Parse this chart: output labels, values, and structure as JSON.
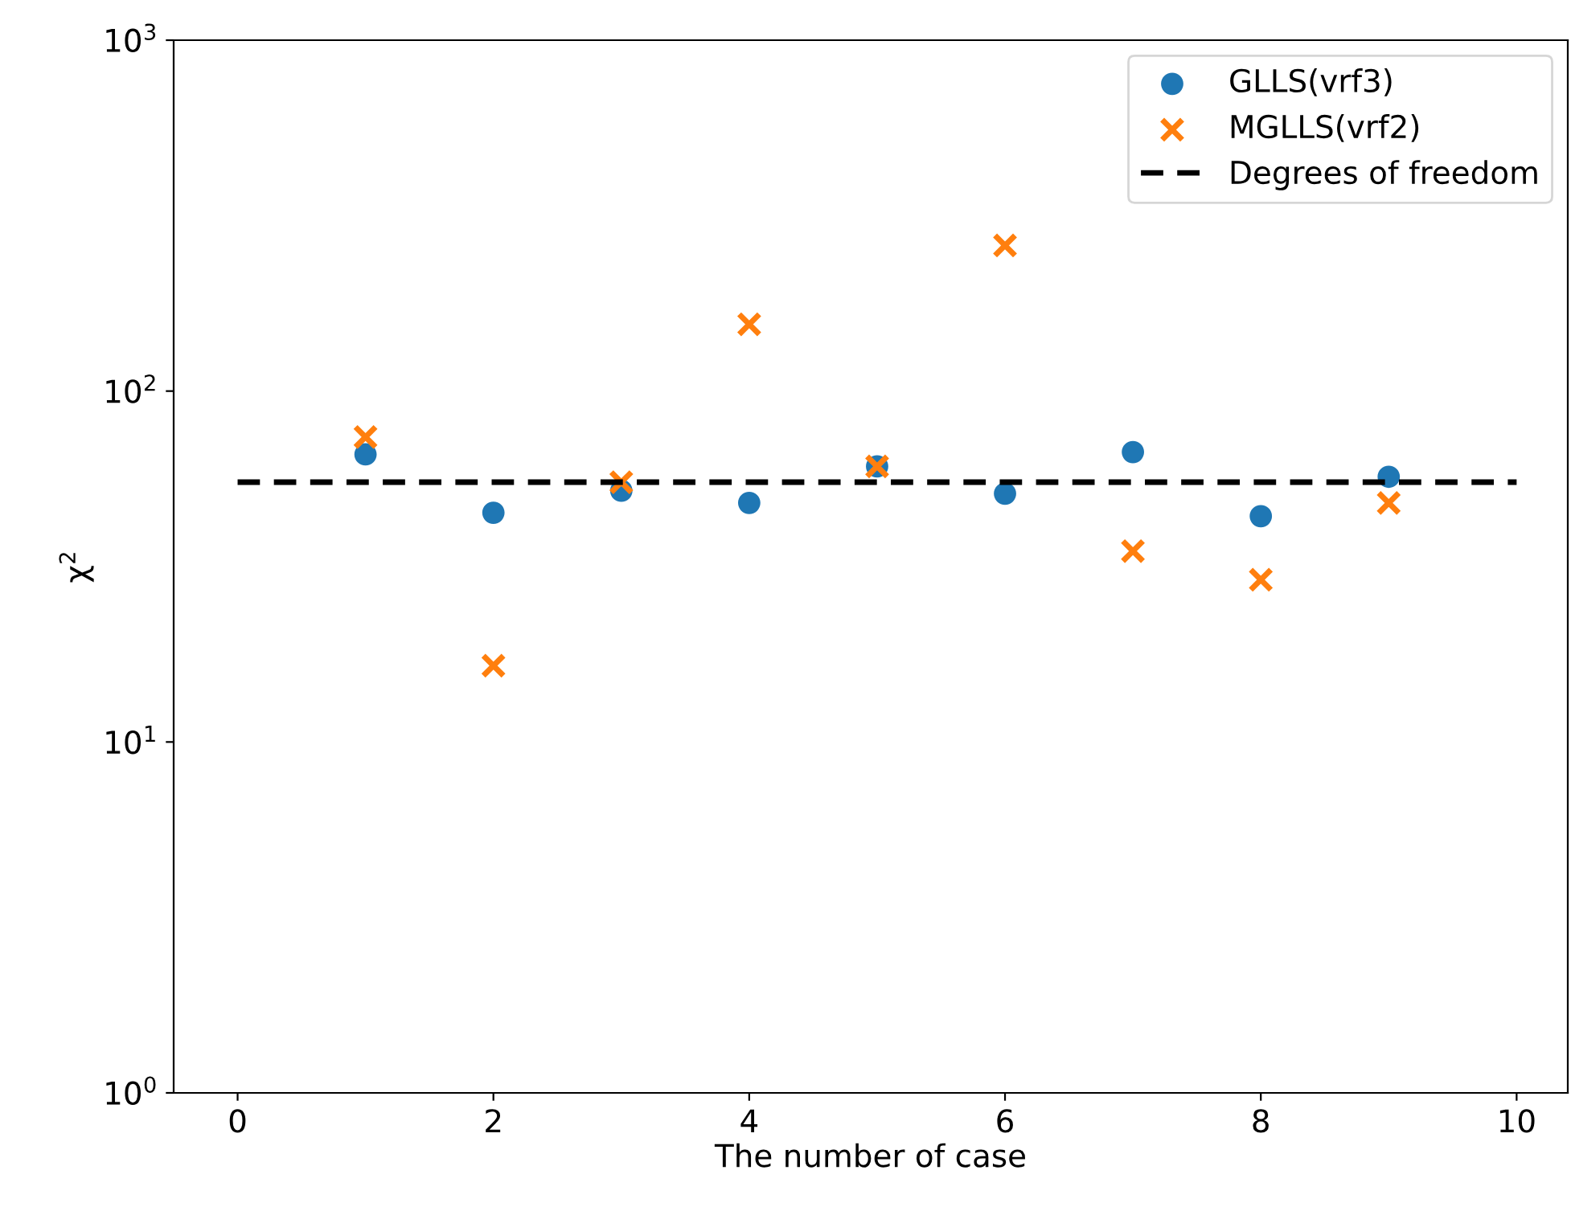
{
  "chart_data": {
    "type": "scatter",
    "xlabel": "The number of case",
    "ylabel": "χ$^{2}$",
    "log": "y",
    "xlim": [
      -0.5,
      10.4
    ],
    "xticks": [
      0,
      2,
      4,
      6,
      8,
      10
    ],
    "ylim": [
      1,
      1000
    ],
    "yticks": [
      {
        "value": 1,
        "label": "10$^{0}$"
      },
      {
        "value": 10,
        "label": "10$^{1}$"
      },
      {
        "value": 100,
        "label": "10$^{2}$"
      },
      {
        "value": 1000,
        "label": "10$^{3}$"
      }
    ],
    "x": [
      1,
      2,
      3,
      4,
      5,
      6,
      7,
      8,
      9
    ],
    "legend": "top right",
    "grid": false,
    "series": [
      {
        "name": "GLLS(vrf3)",
        "color": "#1f77b4",
        "marker": "circle",
        "values": [
          66,
          45,
          52,
          48,
          61,
          51,
          67,
          44,
          57
        ]
      },
      {
        "name": "MGLLS(vrf2)",
        "color": "#ff7f0e",
        "marker": "cross",
        "values": [
          74,
          16.5,
          55,
          155,
          61,
          260,
          35,
          29,
          48
        ]
      },
      {
        "name": "Degrees of freedom",
        "type": "line",
        "color": "#000000",
        "line_style": "dashed",
        "marker": "none",
        "x": [
          0,
          10
        ],
        "values": [
          55,
          55
        ]
      }
    ]
  }
}
